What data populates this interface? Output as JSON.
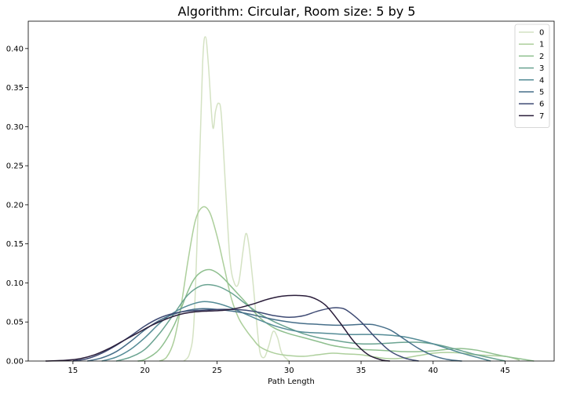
{
  "chart_data": {
    "type": "line",
    "title": "Algorithm: Circular, Room size: 5 by 5",
    "xlabel": "Path Length",
    "ylabel": "",
    "xlim": [
      11.9,
      48.4
    ],
    "ylim": [
      0,
      0.435
    ],
    "xticks": [
      15,
      20,
      25,
      30,
      35,
      40,
      45
    ],
    "yticks": [
      0.0,
      0.05,
      0.1,
      0.15,
      0.2,
      0.25,
      0.3,
      0.35,
      0.4
    ],
    "grid": false,
    "legend_position": "top-right",
    "series": [
      {
        "name": "0",
        "color": "#d4e2c3",
        "points": [
          [
            22.7,
            0.0
          ],
          [
            23.1,
            0.01
          ],
          [
            23.4,
            0.05
          ],
          [
            23.7,
            0.2
          ],
          [
            24.0,
            0.38
          ],
          [
            24.2,
            0.415
          ],
          [
            24.4,
            0.38
          ],
          [
            24.7,
            0.3
          ],
          [
            24.9,
            0.32
          ],
          [
            25.1,
            0.33
          ],
          [
            25.3,
            0.315
          ],
          [
            25.6,
            0.22
          ],
          [
            25.9,
            0.13
          ],
          [
            26.2,
            0.1
          ],
          [
            26.5,
            0.1
          ],
          [
            26.8,
            0.14
          ],
          [
            27.0,
            0.163
          ],
          [
            27.2,
            0.15
          ],
          [
            27.5,
            0.1
          ],
          [
            27.8,
            0.04
          ],
          [
            28.0,
            0.01
          ],
          [
            28.3,
            0.005
          ],
          [
            28.6,
            0.02
          ],
          [
            28.9,
            0.038
          ],
          [
            29.2,
            0.03
          ],
          [
            29.5,
            0.01
          ],
          [
            30.0,
            0.0
          ]
        ]
      },
      {
        "name": "1",
        "color": "#adcf9c",
        "points": [
          [
            21.0,
            0.0
          ],
          [
            21.5,
            0.005
          ],
          [
            22.0,
            0.025
          ],
          [
            22.5,
            0.07
          ],
          [
            23.0,
            0.13
          ],
          [
            23.5,
            0.18
          ],
          [
            24.0,
            0.197
          ],
          [
            24.5,
            0.19
          ],
          [
            25.0,
            0.16
          ],
          [
            25.5,
            0.12
          ],
          [
            26.0,
            0.08
          ],
          [
            26.5,
            0.055
          ],
          [
            27.0,
            0.04
          ],
          [
            27.5,
            0.028
          ],
          [
            28.0,
            0.018
          ],
          [
            29.0,
            0.01
          ],
          [
            30.0,
            0.007
          ],
          [
            31.0,
            0.006
          ],
          [
            32.0,
            0.008
          ],
          [
            33.0,
            0.01
          ],
          [
            34.0,
            0.009
          ],
          [
            35.0,
            0.008
          ],
          [
            36.0,
            0.005
          ],
          [
            37.0,
            0.003
          ],
          [
            38.0,
            0.004
          ],
          [
            39.0,
            0.007
          ],
          [
            40.0,
            0.01
          ],
          [
            41.0,
            0.011
          ],
          [
            42.0,
            0.01
          ],
          [
            43.0,
            0.008
          ],
          [
            44.0,
            0.007
          ],
          [
            45.0,
            0.006
          ],
          [
            45.5,
            0.004
          ],
          [
            46.0,
            0.001
          ]
        ]
      },
      {
        "name": "2",
        "color": "#8ebf8e",
        "points": [
          [
            19.5,
            0.0
          ],
          [
            20.0,
            0.002
          ],
          [
            21.0,
            0.015
          ],
          [
            22.0,
            0.045
          ],
          [
            23.0,
            0.09
          ],
          [
            23.5,
            0.107
          ],
          [
            24.0,
            0.115
          ],
          [
            24.5,
            0.117
          ],
          [
            25.0,
            0.113
          ],
          [
            25.5,
            0.105
          ],
          [
            26.0,
            0.095
          ],
          [
            27.0,
            0.075
          ],
          [
            28.0,
            0.055
          ],
          [
            29.0,
            0.042
          ],
          [
            30.0,
            0.035
          ],
          [
            31.0,
            0.03
          ],
          [
            32.0,
            0.025
          ],
          [
            33.0,
            0.02
          ],
          [
            34.0,
            0.017
          ],
          [
            35.0,
            0.015
          ],
          [
            36.0,
            0.014
          ],
          [
            37.0,
            0.013
          ],
          [
            38.0,
            0.012
          ],
          [
            39.0,
            0.012
          ],
          [
            40.0,
            0.013
          ],
          [
            41.0,
            0.015
          ],
          [
            42.0,
            0.016
          ],
          [
            43.0,
            0.014
          ],
          [
            44.0,
            0.01
          ],
          [
            45.0,
            0.006
          ],
          [
            46.0,
            0.003
          ],
          [
            47.0,
            0.0
          ]
        ]
      },
      {
        "name": "3",
        "color": "#6aa391",
        "points": [
          [
            18.0,
            0.0
          ],
          [
            19.0,
            0.005
          ],
          [
            20.0,
            0.015
          ],
          [
            21.0,
            0.035
          ],
          [
            22.0,
            0.06
          ],
          [
            23.0,
            0.085
          ],
          [
            24.0,
            0.097
          ],
          [
            25.0,
            0.096
          ],
          [
            26.0,
            0.087
          ],
          [
            27.0,
            0.073
          ],
          [
            28.0,
            0.06
          ],
          [
            29.0,
            0.05
          ],
          [
            30.0,
            0.042
          ],
          [
            31.0,
            0.035
          ],
          [
            32.0,
            0.03
          ],
          [
            33.0,
            0.027
          ],
          [
            34.0,
            0.024
          ],
          [
            35.0,
            0.022
          ],
          [
            36.0,
            0.022
          ],
          [
            37.0,
            0.023
          ],
          [
            38.0,
            0.024
          ],
          [
            39.0,
            0.024
          ],
          [
            40.0,
            0.022
          ],
          [
            41.0,
            0.018
          ],
          [
            42.0,
            0.013
          ],
          [
            43.0,
            0.008
          ],
          [
            44.0,
            0.004
          ],
          [
            45.0,
            0.0
          ]
        ]
      },
      {
        "name": "4",
        "color": "#548b96",
        "points": [
          [
            17.0,
            0.0
          ],
          [
            18.0,
            0.005
          ],
          [
            19.0,
            0.015
          ],
          [
            20.0,
            0.03
          ],
          [
            21.0,
            0.048
          ],
          [
            22.0,
            0.062
          ],
          [
            23.0,
            0.071
          ],
          [
            24.0,
            0.076
          ],
          [
            25.0,
            0.074
          ],
          [
            26.0,
            0.068
          ],
          [
            27.0,
            0.06
          ],
          [
            28.0,
            0.052
          ],
          [
            29.0,
            0.045
          ],
          [
            30.0,
            0.04
          ],
          [
            31.0,
            0.037
          ],
          [
            32.0,
            0.036
          ],
          [
            33.0,
            0.035
          ],
          [
            34.0,
            0.034
          ],
          [
            35.0,
            0.034
          ],
          [
            36.0,
            0.034
          ],
          [
            37.0,
            0.033
          ],
          [
            38.0,
            0.031
          ],
          [
            39.0,
            0.027
          ],
          [
            40.0,
            0.022
          ],
          [
            41.0,
            0.016
          ],
          [
            42.0,
            0.01
          ],
          [
            43.0,
            0.005
          ],
          [
            44.0,
            0.0
          ]
        ]
      },
      {
        "name": "5",
        "color": "#466e89",
        "points": [
          [
            16.0,
            0.0
          ],
          [
            17.0,
            0.004
          ],
          [
            18.0,
            0.012
          ],
          [
            19.0,
            0.025
          ],
          [
            20.0,
            0.04
          ],
          [
            21.0,
            0.052
          ],
          [
            22.0,
            0.06
          ],
          [
            23.0,
            0.065
          ],
          [
            24.0,
            0.067
          ],
          [
            25.0,
            0.066
          ],
          [
            26.0,
            0.064
          ],
          [
            27.0,
            0.061
          ],
          [
            28.0,
            0.057
          ],
          [
            29.0,
            0.053
          ],
          [
            30.0,
            0.05
          ],
          [
            31.0,
            0.048
          ],
          [
            32.0,
            0.047
          ],
          [
            33.0,
            0.046
          ],
          [
            34.0,
            0.046
          ],
          [
            35.0,
            0.047
          ],
          [
            35.5,
            0.047
          ],
          [
            36.0,
            0.046
          ],
          [
            37.0,
            0.04
          ],
          [
            38.0,
            0.028
          ],
          [
            39.0,
            0.016
          ],
          [
            40.0,
            0.007
          ],
          [
            41.0,
            0.002
          ],
          [
            42.0,
            0.0
          ]
        ]
      },
      {
        "name": "6",
        "color": "#3e4a73",
        "points": [
          [
            15.0,
            0.0
          ],
          [
            16.0,
            0.003
          ],
          [
            17.0,
            0.01
          ],
          [
            18.0,
            0.02
          ],
          [
            19.0,
            0.032
          ],
          [
            20.0,
            0.045
          ],
          [
            21.0,
            0.055
          ],
          [
            22.0,
            0.061
          ],
          [
            23.0,
            0.064
          ],
          [
            24.0,
            0.065
          ],
          [
            25.0,
            0.066
          ],
          [
            26.0,
            0.066
          ],
          [
            27.0,
            0.065
          ],
          [
            28.0,
            0.062
          ],
          [
            29.0,
            0.058
          ],
          [
            30.0,
            0.056
          ],
          [
            31.0,
            0.058
          ],
          [
            32.0,
            0.064
          ],
          [
            33.0,
            0.068
          ],
          [
            33.5,
            0.068
          ],
          [
            34.0,
            0.065
          ],
          [
            35.0,
            0.05
          ],
          [
            36.0,
            0.03
          ],
          [
            37.0,
            0.013
          ],
          [
            38.0,
            0.004
          ],
          [
            39.0,
            0.0
          ]
        ]
      },
      {
        "name": "7",
        "color": "#2a1d3a",
        "points": [
          [
            13.1,
            0.0
          ],
          [
            14.5,
            0.001
          ],
          [
            15.5,
            0.003
          ],
          [
            16.5,
            0.008
          ],
          [
            17.5,
            0.016
          ],
          [
            18.5,
            0.026
          ],
          [
            19.5,
            0.036
          ],
          [
            20.5,
            0.046
          ],
          [
            21.5,
            0.054
          ],
          [
            22.5,
            0.06
          ],
          [
            23.5,
            0.063
          ],
          [
            24.5,
            0.064
          ],
          [
            25.5,
            0.065
          ],
          [
            26.5,
            0.068
          ],
          [
            27.5,
            0.073
          ],
          [
            28.5,
            0.079
          ],
          [
            29.5,
            0.083
          ],
          [
            30.5,
            0.084
          ],
          [
            31.5,
            0.082
          ],
          [
            32.5,
            0.072
          ],
          [
            33.5,
            0.05
          ],
          [
            34.5,
            0.025
          ],
          [
            35.5,
            0.008
          ],
          [
            36.5,
            0.001
          ],
          [
            37.0,
            0.0
          ]
        ]
      }
    ]
  }
}
